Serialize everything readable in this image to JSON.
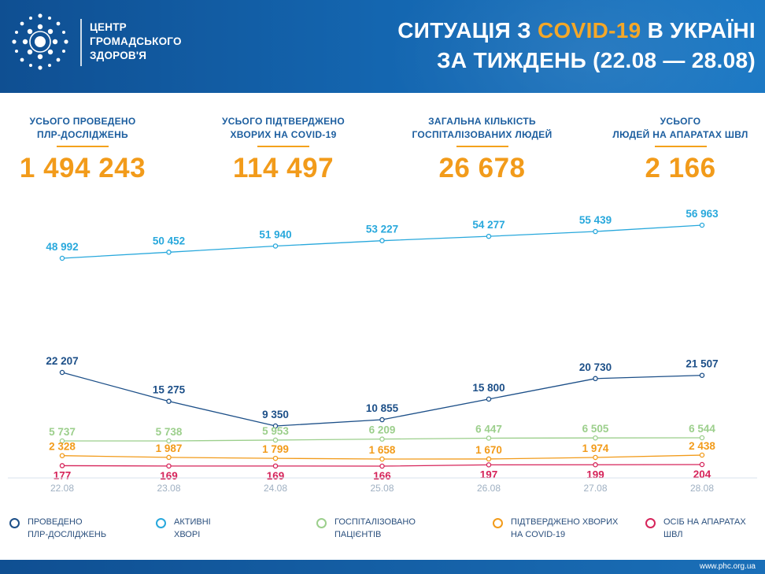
{
  "header": {
    "org_line1": "ЦЕНТР",
    "org_line2": "ГРОМАДСЬКОГО",
    "org_line3": "ЗДОРОВ'Я",
    "title_part1": "СИТУАЦІЯ З ",
    "title_highlight": "COVID-19",
    "title_part2": " В УКРАЇНІ",
    "title_line2": "ЗА ТИЖДЕНЬ (22.08 — 28.08)"
  },
  "stats": [
    {
      "label_line1": "УСЬОГО ПРОВЕДЕНО",
      "label_line2": "ПЛР-ДОСЛІДЖЕНЬ",
      "value": "1 494 243"
    },
    {
      "label_line1": "УСЬОГО ПІДТВЕРДЖЕНО",
      "label_line2": "ХВОРИХ НА COVID-19",
      "value": "114 497"
    },
    {
      "label_line1": "ЗАГАЛЬНА КІЛЬКІСТЬ",
      "label_line2": "ГОСПІТАЛІЗОВАНИХ ЛЮДЕЙ",
      "value": "26 678"
    },
    {
      "label_line1": "УСЬОГО",
      "label_line2": "ЛЮДЕЙ НА АПАРАТАХ ШВЛ",
      "value": "2 166"
    }
  ],
  "chart_data": {
    "type": "line",
    "title": "",
    "xlabel": "",
    "ylabel": "",
    "grid": false,
    "categories": [
      "22.08",
      "23.08",
      "24.08",
      "25.08",
      "26.08",
      "27.08",
      "28.08"
    ],
    "series": [
      {
        "key": "active",
        "name": "АКТИВНІ ХВОРІ",
        "color": "#28a8dc",
        "values": [
          48992,
          50452,
          51940,
          53227,
          54277,
          55439,
          56963
        ],
        "labels": [
          "48 992",
          "50 452",
          "51 940",
          "53 227",
          "54 277",
          "55 439",
          "56 963"
        ]
      },
      {
        "key": "pcr",
        "name": "ПРОВЕДЕНО ПЛР-ДОСЛІДЖЕНЬ",
        "color": "#1c4f88",
        "values": [
          22207,
          15275,
          9350,
          10855,
          15800,
          20730,
          21507
        ],
        "labels": [
          "22 207",
          "15 275",
          "9 350",
          "10 855",
          "15 800",
          "20 730",
          "21 507"
        ]
      },
      {
        "key": "hosp",
        "name": "ГОСПІТАЛІЗОВАНО ПАЦІЄНТІВ",
        "color": "#9ccf8c",
        "values": [
          5737,
          5738,
          5953,
          6209,
          6447,
          6505,
          6544
        ],
        "labels": [
          "5 737",
          "5 738",
          "5 953",
          "6 209",
          "6 447",
          "6 505",
          "6 544"
        ]
      },
      {
        "key": "confirmed",
        "name": "ПІДТВЕРДЖЕНО ХВОРИХ НА COVID-19",
        "color": "#f29b1a",
        "values": [
          2328,
          1987,
          1799,
          1658,
          1670,
          1974,
          2438
        ],
        "labels": [
          "2 328",
          "1 987",
          "1 799",
          "1 658",
          "1 670",
          "1 974",
          "2 438"
        ]
      },
      {
        "key": "ventilator",
        "name": "ОСІБ НА АПАРАТАХ ШВЛ",
        "color": "#d6245a",
        "values": [
          177,
          169,
          169,
          166,
          197,
          199,
          204
        ],
        "labels": [
          "177",
          "169",
          "169",
          "166",
          "197",
          "199",
          "204"
        ]
      }
    ]
  },
  "legend": [
    {
      "line1": "ПРОВЕДЕНО",
      "line2": "ПЛР-ДОСЛІДЖЕНЬ",
      "color": "#1c4f88"
    },
    {
      "line1": "АКТИВНІ",
      "line2": "ХВОРІ",
      "color": "#28a8dc"
    },
    {
      "line1": "ГОСПІТАЛІЗОВАНО",
      "line2": "ПАЦІЄНТІВ",
      "color": "#9ccf8c"
    },
    {
      "line1": "ПІДТВЕРДЖЕНО ХВОРИХ",
      "line2": "НА COVID-19",
      "color": "#f29b1a"
    },
    {
      "line1": "ОСІБ НА АПАРАТАХ",
      "line2": "ШВЛ",
      "color": "#d6245a"
    }
  ],
  "footer": {
    "url": "www.phc.org.ua"
  }
}
